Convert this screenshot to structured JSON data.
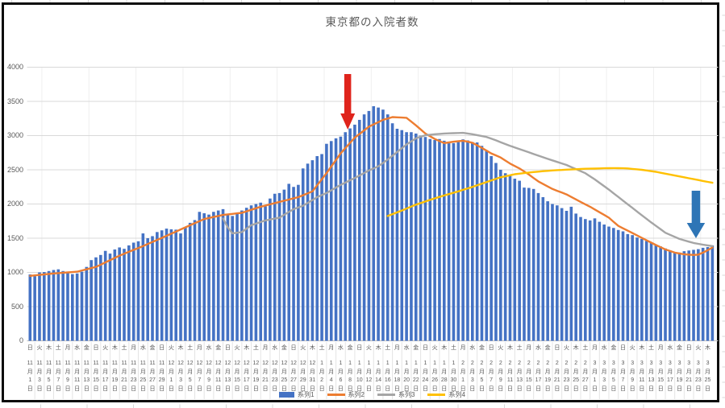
{
  "chart": {
    "title": "東京都の入院者数",
    "y_axis": {
      "min": 0,
      "max": 4000,
      "step": 500,
      "ticks": [
        "0",
        "500",
        "1000",
        "1500",
        "2000",
        "2500",
        "3000",
        "3500",
        "4000"
      ]
    },
    "label_suffix": {
      "month": "月",
      "day": "日"
    },
    "x_labels": [
      "日,11,1",
      "火,11,3",
      "木,11,5",
      "土,11,7",
      "月,11,9",
      "水,11,11",
      "金,11,13",
      "日,11,15",
      "火,11,17",
      "木,11,19",
      "土,11,21",
      "月,11,23",
      "水,11,25",
      "金,11,27",
      "日,11,29",
      "火,12,1",
      "木,12,3",
      "土,12,5",
      "月,12,7",
      "水,12,9",
      "金,12,11",
      "日,12,13",
      "火,12,15",
      "木,12,17",
      "土,12,19",
      "月,12,21",
      "水,12,23",
      "金,12,25",
      "日,12,27",
      "火,12,29",
      "木,12,31",
      "土,1,2",
      "月,1,4",
      "水,1,6",
      "金,1,8",
      "日,1,10",
      "火,1,12",
      "木,1,14",
      "土,1,16",
      "月,1,18",
      "水,1,20",
      "金,1,22",
      "日,1,24",
      "火,1,26",
      "木,1,28",
      "土,1,30",
      "月,2,1",
      "水,2,3",
      "金,2,5",
      "日,2,7",
      "火,2,9",
      "木,2,11",
      "土,2,13",
      "月,2,15",
      "水,2,17",
      "金,2,19",
      "日,2,21",
      "火,2,23",
      "木,2,25",
      "土,2,27",
      "月,3,1",
      "水,3,3",
      "金,3,5",
      "日,3,7",
      "火,3,9",
      "木,3,11",
      "土,3,13",
      "月,3,15",
      "水,3,17",
      "金,3,19",
      "日,3,21",
      "火,3,23",
      "木,3,25"
    ]
  },
  "chart_data": {
    "type": "bar",
    "combo": "bar + 3 line series, daily points, x labels shown every 2 days",
    "title": "東京都の入院者数",
    "ylim": [
      0,
      4000
    ],
    "x_start_label": "11月1日",
    "x_end_label": "3月25日",
    "points": 146,
    "grid": "horizontal every 500, faint vertical every 10 days",
    "legend_position": "bottom-center",
    "series": [
      {
        "name": "系列1",
        "type": "bar",
        "color": "#4472C4",
        "values": [
          970,
          945,
          1000,
          1005,
          1020,
          1035,
          1045,
          1020,
          990,
          975,
          985,
          1010,
          1080,
          1180,
          1220,
          1255,
          1315,
          1275,
          1335,
          1365,
          1345,
          1395,
          1435,
          1455,
          1570,
          1500,
          1530,
          1590,
          1615,
          1640,
          1630,
          1625,
          1570,
          1655,
          1725,
          1765,
          1885,
          1865,
          1845,
          1885,
          1905,
          1925,
          1845,
          1825,
          1865,
          1905,
          1945,
          1980,
          2000,
          2020,
          1965,
          2080,
          2150,
          2160,
          2210,
          2295,
          2250,
          2280,
          2520,
          2590,
          2640,
          2700,
          2730,
          2880,
          2920,
          2960,
          2985,
          3050,
          3105,
          3160,
          3230,
          3310,
          3360,
          3430,
          3410,
          3380,
          3310,
          3180,
          3100,
          3080,
          3050,
          3050,
          3030,
          3000,
          2980,
          2950,
          2935,
          2950,
          2925,
          2905,
          2890,
          2905,
          2945,
          2930,
          2905,
          2900,
          2850,
          2785,
          2700,
          2600,
          2500,
          2450,
          2420,
          2370,
          2340,
          2240,
          2235,
          2220,
          2160,
          2100,
          2040,
          2000,
          1980,
          1940,
          1900,
          1960,
          1860,
          1810,
          1780,
          1760,
          1790,
          1740,
          1700,
          1670,
          1650,
          1620,
          1600,
          1560,
          1545,
          1510,
          1490,
          1460,
          1440,
          1400,
          1380,
          1350,
          1320,
          1300,
          1290,
          1310,
          1320,
          1330,
          1340,
          1360,
          1370,
          1395
        ]
      },
      {
        "name": "系列2",
        "type": "line",
        "color": "#ED7D31",
        "values": [
          950,
          957,
          964,
          971,
          978,
          985,
          990,
          995,
          1000,
          1005,
          1010,
          1028,
          1045,
          1063,
          1080,
          1113,
          1146,
          1179,
          1212,
          1245,
          1273,
          1301,
          1329,
          1357,
          1385,
          1415,
          1445,
          1475,
          1505,
          1535,
          1566,
          1597,
          1628,
          1659,
          1690,
          1720,
          1750,
          1780,
          1795,
          1810,
          1825,
          1840,
          1848,
          1855,
          1863,
          1870,
          1893,
          1915,
          1938,
          1960,
          1978,
          1995,
          2013,
          2030,
          2048,
          2065,
          2083,
          2100,
          2128,
          2157,
          2185,
          2273,
          2362,
          2450,
          2547,
          2643,
          2740,
          2817,
          2893,
          2970,
          3023,
          3077,
          3130,
          3163,
          3197,
          3230,
          3250,
          3270,
          3267,
          3263,
          3260,
          3205,
          3150,
          3090,
          3030,
          2990,
          2950,
          2920,
          2890,
          2900,
          2910,
          2918,
          2925,
          2910,
          2895,
          2858,
          2820,
          2780,
          2740,
          2710,
          2680,
          2635,
          2590,
          2555,
          2520,
          2475,
          2430,
          2380,
          2330,
          2293,
          2257,
          2220,
          2193,
          2167,
          2140,
          2103,
          2067,
          2030,
          1995,
          1960,
          1920,
          1880,
          1840,
          1800,
          1740,
          1680,
          1645,
          1610,
          1575,
          1540,
          1505,
          1470,
          1435,
          1400,
          1368,
          1335,
          1313,
          1290,
          1278,
          1265,
          1260,
          1255,
          1260,
          1290,
          1325,
          1365
        ]
      },
      {
        "name": "系列3",
        "type": "line",
        "color": "#A5A5A5",
        "values": [
          null,
          null,
          null,
          null,
          null,
          null,
          null,
          null,
          null,
          null,
          null,
          null,
          null,
          null,
          null,
          null,
          null,
          null,
          null,
          null,
          null,
          null,
          null,
          null,
          null,
          null,
          null,
          null,
          null,
          null,
          null,
          null,
          null,
          null,
          null,
          null,
          null,
          null,
          null,
          null,
          null,
          1790,
          1660,
          1570,
          1580,
          1590,
          1640,
          1690,
          1713,
          1737,
          1760,
          1773,
          1787,
          1800,
          1842,
          1883,
          1925,
          1950,
          1975,
          2017,
          2058,
          2100,
          2130,
          2160,
          2200,
          2240,
          2280,
          2313,
          2347,
          2380,
          2417,
          2453,
          2490,
          2520,
          2550,
          2600,
          2650,
          2705,
          2760,
          2815,
          2870,
          2915,
          2960,
          2983,
          3005,
          3013,
          3020,
          3025,
          3030,
          3033,
          3035,
          3038,
          3040,
          3030,
          3020,
          3007,
          2993,
          2980,
          2955,
          2930,
          2903,
          2877,
          2850,
          2827,
          2803,
          2780,
          2755,
          2730,
          2707,
          2683,
          2660,
          2638,
          2615,
          2593,
          2570,
          2540,
          2510,
          2480,
          2450,
          2405,
          2360,
          2310,
          2260,
          2210,
          2157,
          2103,
          2050,
          1997,
          1943,
          1890,
          1837,
          1783,
          1730,
          1680,
          1630,
          1580,
          1550,
          1520,
          1490,
          1470,
          1450,
          1430,
          1418,
          1405,
          1395,
          1385
        ]
      },
      {
        "name": "系列4",
        "type": "line",
        "color": "#FFC000",
        "values": [
          null,
          null,
          null,
          null,
          null,
          null,
          null,
          null,
          null,
          null,
          null,
          null,
          null,
          null,
          null,
          null,
          null,
          null,
          null,
          null,
          null,
          null,
          null,
          null,
          null,
          null,
          null,
          null,
          null,
          null,
          null,
          null,
          null,
          null,
          null,
          null,
          null,
          null,
          null,
          null,
          null,
          null,
          null,
          null,
          null,
          null,
          null,
          null,
          null,
          null,
          null,
          null,
          null,
          null,
          null,
          null,
          null,
          null,
          null,
          null,
          null,
          null,
          null,
          null,
          null,
          null,
          null,
          null,
          null,
          null,
          null,
          null,
          null,
          null,
          null,
          null,
          1825,
          1852,
          1878,
          1905,
          1933,
          1962,
          1990,
          2013,
          2037,
          2060,
          2082,
          2103,
          2125,
          2145,
          2165,
          2185,
          2207,
          2228,
          2250,
          2273,
          2297,
          2320,
          2343,
          2367,
          2390,
          2405,
          2420,
          2435,
          2443,
          2452,
          2460,
          2467,
          2473,
          2480,
          2485,
          2490,
          2495,
          2498,
          2502,
          2505,
          2508,
          2512,
          2515,
          2517,
          2518,
          2520,
          2522,
          2523,
          2525,
          2523,
          2522,
          2520,
          2513,
          2507,
          2500,
          2490,
          2480,
          2470,
          2457,
          2443,
          2430,
          2417,
          2403,
          2390,
          2377,
          2363,
          2350,
          2337,
          2323,
          2310
        ]
      }
    ],
    "annotations": [
      {
        "name": "red-down-arrow",
        "color": "#DF241C",
        "points_at_label": "1月8日"
      },
      {
        "name": "blue-down-arrow",
        "color": "#2E75B6",
        "points_at_label": "3月21日"
      }
    ]
  }
}
